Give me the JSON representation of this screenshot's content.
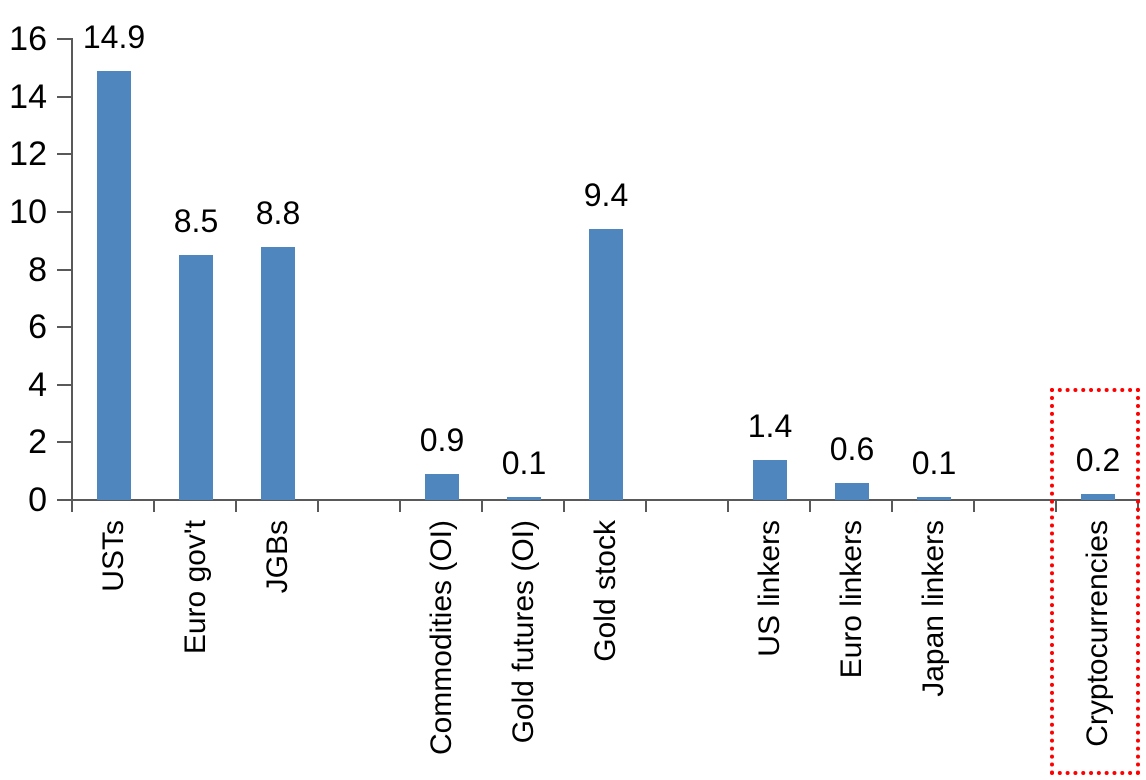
{
  "chart_data": {
    "type": "bar",
    "title": "",
    "xlabel": "",
    "ylabel": "",
    "ylim": [
      0,
      16
    ],
    "yticks": [
      0,
      2,
      4,
      6,
      8,
      10,
      12,
      14,
      16
    ],
    "ytick_labels": [
      "0",
      "2",
      "4",
      "6",
      "8",
      "10",
      "12",
      "14",
      "16"
    ],
    "grid": false,
    "legend": false,
    "total_slots": 13,
    "bar_color": "#4F86BE",
    "axis_color": "#595959",
    "text_color": "#000000",
    "highlight_color": "#FF0000",
    "bars": [
      {
        "slot": 0,
        "label": "USTs",
        "value": 14.9,
        "value_label": "14.9",
        "highlighted": false
      },
      {
        "slot": 1,
        "label": "Euro gov't",
        "value": 8.5,
        "value_label": "8.5",
        "highlighted": false
      },
      {
        "slot": 2,
        "label": "JGBs",
        "value": 8.8,
        "value_label": "8.8",
        "highlighted": false
      },
      {
        "slot": 4,
        "label": "Commodities (OI)",
        "value": 0.9,
        "value_label": "0.9",
        "highlighted": false
      },
      {
        "slot": 5,
        "label": "Gold futures (OI)",
        "value": 0.1,
        "value_label": "0.1",
        "highlighted": false
      },
      {
        "slot": 6,
        "label": "Gold stock",
        "value": 9.4,
        "value_label": "9.4",
        "highlighted": false
      },
      {
        "slot": 8,
        "label": "US linkers",
        "value": 1.4,
        "value_label": "1.4",
        "highlighted": false
      },
      {
        "slot": 9,
        "label": "Euro linkers",
        "value": 0.6,
        "value_label": "0.6",
        "highlighted": false
      },
      {
        "slot": 10,
        "label": "Japan linkers",
        "value": 0.1,
        "value_label": "0.1",
        "highlighted": false
      },
      {
        "slot": 12,
        "label": "Cryptocurrencies",
        "value": 0.2,
        "value_label": "0.2",
        "highlighted": true
      }
    ],
    "highlight": {
      "category": "Cryptocurrencies",
      "style": "red dotted rectangle"
    }
  }
}
